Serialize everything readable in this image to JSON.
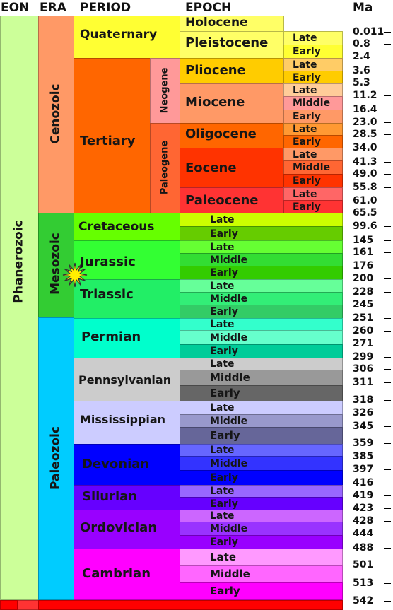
{
  "headers": {
    "eon": "EON",
    "era": "ERA",
    "period": "PERIOD",
    "epoch": "EPOCH",
    "ma": "Ma"
  },
  "eons": [
    {
      "name": "Phanerozoic",
      "color": "#ccff99"
    }
  ],
  "eras": [
    {
      "name": "Cenozoic",
      "color": "#ff9966"
    },
    {
      "name": "Mesozoic",
      "color": "#33cc33"
    },
    {
      "name": "Paleozoic",
      "color": "#00ccff"
    }
  ],
  "periods": [
    {
      "name": "Quaternary",
      "color": "#ffff33"
    },
    {
      "name": "Tertiary",
      "color": "#ff6600"
    },
    {
      "name": "Cretaceous",
      "color": "#66ff00"
    },
    {
      "name": "Jurassic",
      "color": "#33ff33"
    },
    {
      "name": "Triassic",
      "color": "#22ee66"
    },
    {
      "name": "Permian",
      "color": "#00ffcc"
    },
    {
      "name": "Pennsylvanian",
      "color": "#cccccc"
    },
    {
      "name": "Mississippian",
      "color": "#ccccff"
    },
    {
      "name": "Devonian",
      "color": "#0000ff"
    },
    {
      "name": "Silurian",
      "color": "#6600ff"
    },
    {
      "name": "Ordovician",
      "color": "#9900ff"
    },
    {
      "name": "Cambrian",
      "color": "#ff00ff"
    }
  ],
  "subperiods": [
    {
      "name": "Neogene",
      "color": "#ff9999"
    },
    {
      "name": "Paleogene",
      "color": "#ff6633"
    }
  ],
  "epochs": [
    {
      "name": "Holocene",
      "color": "#ffff66"
    },
    {
      "name": "Pleistocene",
      "color": "#ffff66"
    },
    {
      "name": "Pliocene",
      "color": "#ffcc00"
    },
    {
      "name": "Miocene",
      "color": "#ff9966"
    },
    {
      "name": "Oligocene",
      "color": "#ff6600"
    },
    {
      "name": "Eocene",
      "color": "#ff3300"
    },
    {
      "name": "Paleocene",
      "color": "#ff3333"
    }
  ],
  "subepochs": [
    {
      "name": "Late",
      "color": "#ffff66"
    },
    {
      "name": "Early",
      "color": "#ffff33"
    },
    {
      "name": "Late",
      "color": "#ffcc66"
    },
    {
      "name": "Early",
      "color": "#ffcc00"
    },
    {
      "name": "Late",
      "color": "#ffcc99"
    },
    {
      "name": "Middle",
      "color": "#ff9999"
    },
    {
      "name": "Early",
      "color": "#ff9966"
    },
    {
      "name": "Late",
      "color": "#ff9933"
    },
    {
      "name": "Early",
      "color": "#ff6600"
    },
    {
      "name": "Late",
      "color": "#ff9966"
    },
    {
      "name": "Middle",
      "color": "#ff6633"
    },
    {
      "name": "Early",
      "color": "#ff3300"
    },
    {
      "name": "Late",
      "color": "#ff6666"
    },
    {
      "name": "Early",
      "color": "#ff3333"
    },
    {
      "name": "Late",
      "color": "#ccff00"
    },
    {
      "name": "Early",
      "color": "#66cc00"
    },
    {
      "name": "Late",
      "color": "#66ff33"
    },
    {
      "name": "Middle",
      "color": "#33dd33"
    },
    {
      "name": "Early",
      "color": "#33cc00"
    },
    {
      "name": "Late",
      "color": "#66ff99"
    },
    {
      "name": "Middle",
      "color": "#33ee77"
    },
    {
      "name": "Early",
      "color": "#33cc66"
    },
    {
      "name": "Late",
      "color": "#33ffcc"
    },
    {
      "name": "Middle",
      "color": "#66ffcc"
    },
    {
      "name": "Early",
      "color": "#00cc99"
    },
    {
      "name": "Late",
      "color": "#cccccc"
    },
    {
      "name": "Middle",
      "color": "#999999"
    },
    {
      "name": "Early",
      "color": "#666666"
    },
    {
      "name": "Late",
      "color": "#ccccff"
    },
    {
      "name": "Middle",
      "color": "#9999cc"
    },
    {
      "name": "Early",
      "color": "#666699"
    },
    {
      "name": "Late",
      "color": "#6666ff"
    },
    {
      "name": "Middle",
      "color": "#3333ff"
    },
    {
      "name": "Early",
      "color": "#0000ff"
    },
    {
      "name": "Late",
      "color": "#9966ff"
    },
    {
      "name": "Early",
      "color": "#6600ff"
    },
    {
      "name": "Late",
      "color": "#cc66ff"
    },
    {
      "name": "Middle",
      "color": "#9933ff"
    },
    {
      "name": "Early",
      "color": "#9900ff"
    },
    {
      "name": "Late",
      "color": "#ff99ff"
    },
    {
      "name": "Middle",
      "color": "#ff66ff"
    },
    {
      "name": "Early",
      "color": "#ff00ff"
    }
  ],
  "ma_labels": [
    "0.011",
    "0.8",
    "2.4",
    "3.6",
    "5.3",
    "11.2",
    "16.4",
    "23.0",
    "28.5",
    "34.0",
    "41.3",
    "49.0",
    "55.8",
    "61.0",
    "65.5",
    "99.6",
    "145",
    "161",
    "176",
    "200",
    "228",
    "245",
    "251",
    "260",
    "271",
    "299",
    "306",
    "311",
    "318",
    "326",
    "345",
    "359",
    "385",
    "397",
    "416",
    "419",
    "423",
    "428",
    "444",
    "488",
    "501",
    "513",
    "542"
  ],
  "marker": {
    "color": "#ffee00",
    "stroke": "#333333"
  },
  "bottom_band": {
    "color": "#ff0000",
    "side_color": "#ff3333"
  }
}
